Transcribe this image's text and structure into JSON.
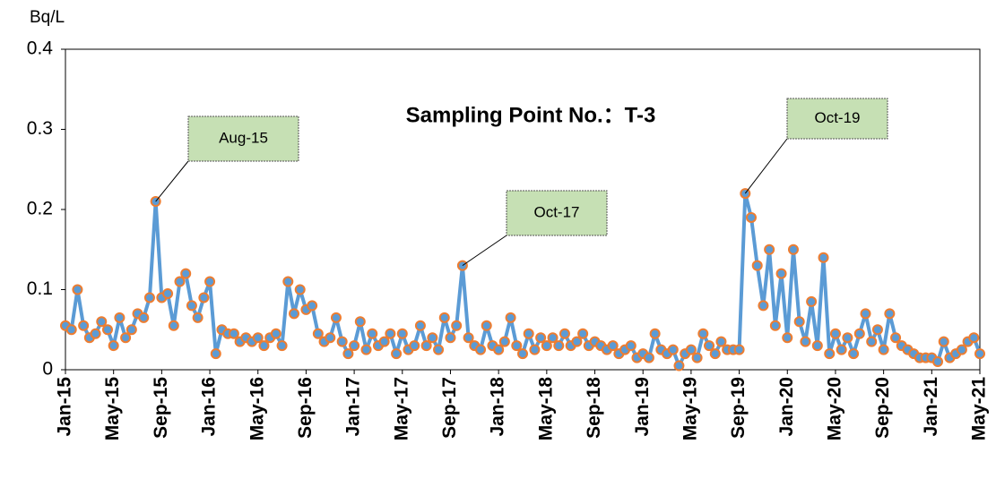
{
  "chart_data": {
    "type": "line",
    "title": "Sampling Point No.：T-3",
    "y_label": "Bq/L",
    "categories": [
      "Jan-15",
      null,
      null,
      null,
      null,
      null,
      null,
      null,
      "May-15",
      null,
      null,
      null,
      null,
      null,
      null,
      null,
      "Sep-15",
      null,
      null,
      null,
      null,
      null,
      null,
      null,
      "Jan-16",
      null,
      null,
      null,
      null,
      null,
      null,
      null,
      "May-16",
      null,
      null,
      null,
      null,
      null,
      null,
      null,
      "Sep-16",
      null,
      null,
      null,
      null,
      null,
      null,
      null,
      "Jan-17",
      null,
      null,
      null,
      null,
      null,
      null,
      null,
      "May-17",
      null,
      null,
      null,
      null,
      null,
      null,
      null,
      "Sep-17",
      null,
      null,
      null,
      null,
      null,
      null,
      null,
      "Jan-18",
      null,
      null,
      null,
      null,
      null,
      null,
      null,
      "May-18",
      null,
      null,
      null,
      null,
      null,
      null,
      null,
      "Sep-18",
      null,
      null,
      null,
      null,
      null,
      null,
      null,
      "Jan-19",
      null,
      null,
      null,
      null,
      null,
      null,
      null,
      "May-19",
      null,
      null,
      null,
      null,
      null,
      null,
      null,
      "Sep-19",
      null,
      null,
      null,
      null,
      null,
      null,
      null,
      "Jan-20",
      null,
      null,
      null,
      null,
      null,
      null,
      null,
      "May-20",
      null,
      null,
      null,
      null,
      null,
      null,
      null,
      "Sep-20",
      null,
      null,
      null,
      null,
      null,
      null,
      null,
      "Jan-21",
      null,
      null,
      null,
      null,
      null,
      null,
      null,
      "May-21"
    ],
    "values": [
      0.055,
      0.05,
      0.1,
      0.055,
      0.04,
      0.045,
      0.06,
      0.05,
      0.03,
      0.065,
      0.04,
      0.05,
      0.07,
      0.065,
      0.09,
      0.21,
      0.09,
      0.095,
      0.055,
      0.11,
      0.12,
      0.08,
      0.065,
      0.09,
      0.11,
      0.02,
      0.05,
      0.045,
      0.045,
      0.035,
      0.04,
      0.035,
      0.04,
      0.03,
      0.04,
      0.045,
      0.03,
      0.11,
      0.07,
      0.1,
      0.075,
      0.08,
      0.045,
      0.035,
      0.04,
      0.065,
      0.035,
      0.02,
      0.03,
      0.06,
      0.025,
      0.045,
      0.03,
      0.035,
      0.045,
      0.02,
      0.045,
      0.025,
      0.03,
      0.055,
      0.03,
      0.04,
      0.025,
      0.065,
      0.04,
      0.055,
      0.13,
      0.04,
      0.03,
      0.025,
      0.055,
      0.03,
      0.025,
      0.035,
      0.065,
      0.03,
      0.02,
      0.045,
      0.025,
      0.04,
      0.03,
      0.04,
      0.03,
      0.045,
      0.03,
      0.035,
      0.045,
      0.03,
      0.035,
      0.03,
      0.025,
      0.03,
      0.02,
      0.025,
      0.03,
      0.015,
      0.02,
      0.015,
      0.045,
      0.025,
      0.02,
      0.025,
      0.005,
      0.02,
      0.025,
      0.015,
      0.045,
      0.03,
      0.02,
      0.035,
      0.025,
      0.025,
      0.025,
      0.22,
      0.19,
      0.13,
      0.08,
      0.15,
      0.055,
      0.12,
      0.04,
      0.15,
      0.06,
      0.035,
      0.085,
      0.03,
      0.14,
      0.02,
      0.045,
      0.025,
      0.04,
      0.02,
      0.045,
      0.07,
      0.035,
      0.05,
      0.025,
      0.07,
      0.04,
      0.03,
      0.025,
      0.02,
      0.015,
      0.015,
      0.015,
      0.01,
      0.035,
      0.015,
      0.02,
      0.025,
      0.035,
      0.04,
      0.02
    ],
    "color": "#5b9bd5",
    "marker_color": "#ed7d31",
    "ylim": [
      0,
      0.4
    ],
    "yticks": [
      0,
      0.1,
      0.2,
      0.3,
      0.4
    ],
    "annotations": [
      "Aug-15",
      "Oct-17",
      "Oct-19"
    ]
  }
}
